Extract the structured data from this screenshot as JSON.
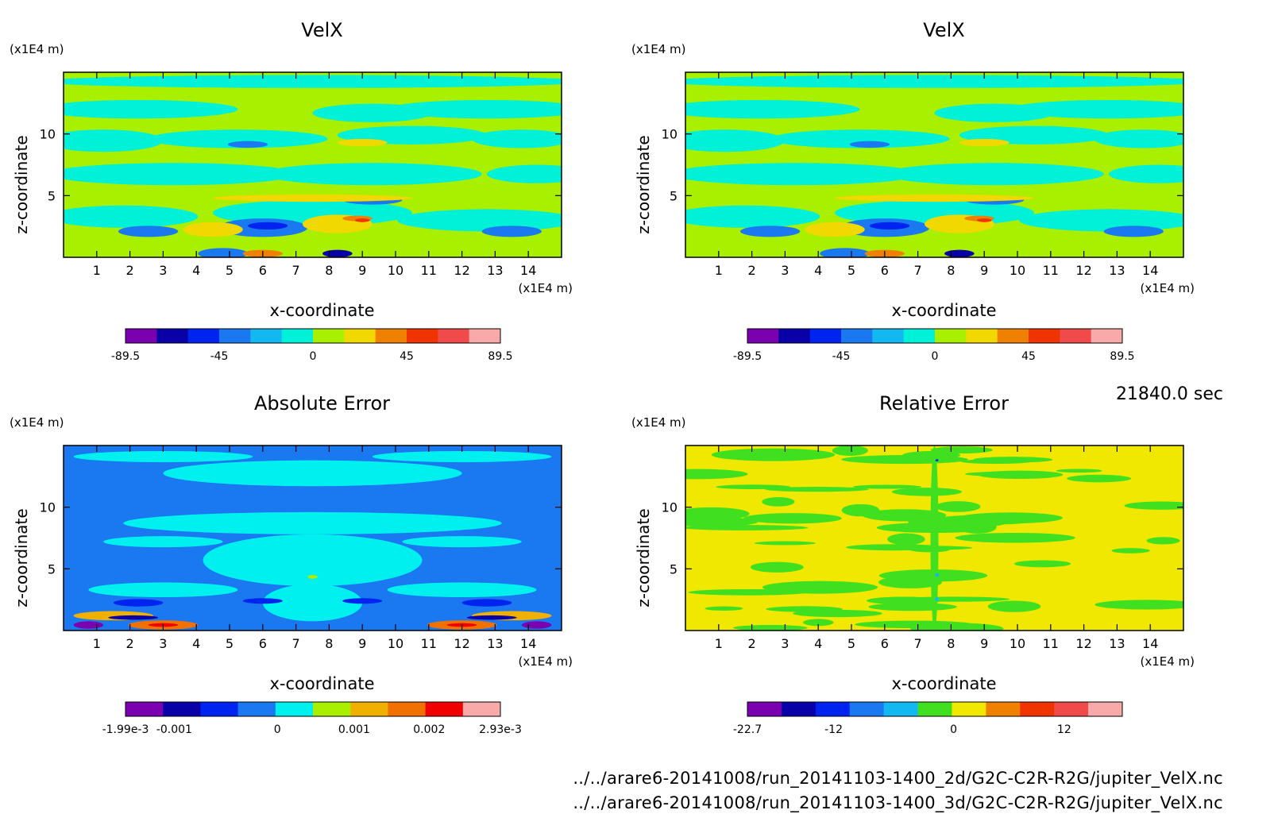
{
  "time_label": "21840.0 sec",
  "file_paths": [
    "../../arare6-20141008/run_20141103-1400_2d/G2C-C2R-R2G/jupiter_VelX.nc",
    "../../arare6-20141008/run_20141103-1400_3d/G2C-C2R-R2G/jupiter_VelX.nc"
  ],
  "colors": {
    "velx_levels": [
      "#7a00b0",
      "#0a00a8",
      "#0024f0",
      "#1a78f0",
      "#14b8f0",
      "#00f0d8",
      "#a8f000",
      "#f0d800",
      "#f08000",
      "#f03400",
      "#f04a4a",
      "#f8aaaa"
    ],
    "abs_levels": [
      "#7a00b0",
      "#0a00a8",
      "#0024f0",
      "#1a78f0",
      "#00f0f0",
      "#a8f000",
      "#f0b000",
      "#f07000",
      "#f00000",
      "#f8aaaa"
    ],
    "rel_levels": [
      "#7a00b0",
      "#0a00a8",
      "#0024f0",
      "#1a78f0",
      "#14b8f0",
      "#40e020",
      "#f0e800",
      "#f08000",
      "#f03400",
      "#f04a4a",
      "#f8aaaa"
    ]
  },
  "chart_data": [
    {
      "type": "heatmap",
      "title": "VelX",
      "xlabel": "x-coordinate",
      "ylabel": "z-coordinate",
      "x_unit": "(x1E4 m)",
      "y_unit": "(x1E4 m)",
      "x_ticks": [
        "1",
        "2",
        "3",
        "4",
        "5",
        "6",
        "7",
        "8",
        "9",
        "10",
        "11",
        "12",
        "13",
        "14"
      ],
      "y_ticks": [
        "5",
        "10"
      ],
      "xlim": [
        0,
        15
      ],
      "ylim": [
        0,
        15
      ],
      "colorbar": {
        "labels": [
          "-89.5",
          "-45",
          "0",
          "45",
          "89.5"
        ],
        "range": [
          -89.5,
          89.5
        ]
      }
    },
    {
      "type": "heatmap",
      "title": "VelX",
      "xlabel": "x-coordinate",
      "ylabel": "z-coordinate",
      "x_unit": "(x1E4 m)",
      "y_unit": "(x1E4 m)",
      "x_ticks": [
        "1",
        "2",
        "3",
        "4",
        "5",
        "6",
        "7",
        "8",
        "9",
        "10",
        "11",
        "12",
        "13",
        "14"
      ],
      "y_ticks": [
        "5",
        "10"
      ],
      "xlim": [
        0,
        15
      ],
      "ylim": [
        0,
        15
      ],
      "colorbar": {
        "labels": [
          "-89.5",
          "-45",
          "0",
          "45",
          "89.5"
        ],
        "range": [
          -89.5,
          89.5
        ]
      }
    },
    {
      "type": "heatmap",
      "title": "Absolute Error",
      "xlabel": "x-coordinate",
      "ylabel": "z-coordinate",
      "x_unit": "(x1E4 m)",
      "y_unit": "(x1E4 m)",
      "x_ticks": [
        "1",
        "2",
        "3",
        "4",
        "5",
        "6",
        "7",
        "8",
        "9",
        "10",
        "11",
        "12",
        "13",
        "14"
      ],
      "y_ticks": [
        "5",
        "10"
      ],
      "xlim": [
        0,
        15
      ],
      "ylim": [
        0,
        15
      ],
      "colorbar": {
        "labels": [
          "-1.99e-3",
          "-0.001",
          "0",
          "0.001",
          "0.002",
          "2.93e-3"
        ],
        "range": [
          -0.00199,
          0.00293
        ]
      }
    },
    {
      "type": "heatmap",
      "title": "Relative Error",
      "xlabel": "x-coordinate",
      "ylabel": "z-coordinate",
      "x_unit": "(x1E4 m)",
      "y_unit": "(x1E4 m)",
      "x_ticks": [
        "1",
        "2",
        "3",
        "4",
        "5",
        "6",
        "7",
        "8",
        "9",
        "10",
        "11",
        "12",
        "13",
        "14"
      ],
      "y_ticks": [
        "5",
        "10"
      ],
      "xlim": [
        0,
        15
      ],
      "ylim": [
        0,
        15
      ],
      "colorbar": {
        "labels": [
          "-22.7",
          "-12",
          "0",
          "12"
        ],
        "range": [
          -22.7,
          18
        ]
      }
    }
  ]
}
